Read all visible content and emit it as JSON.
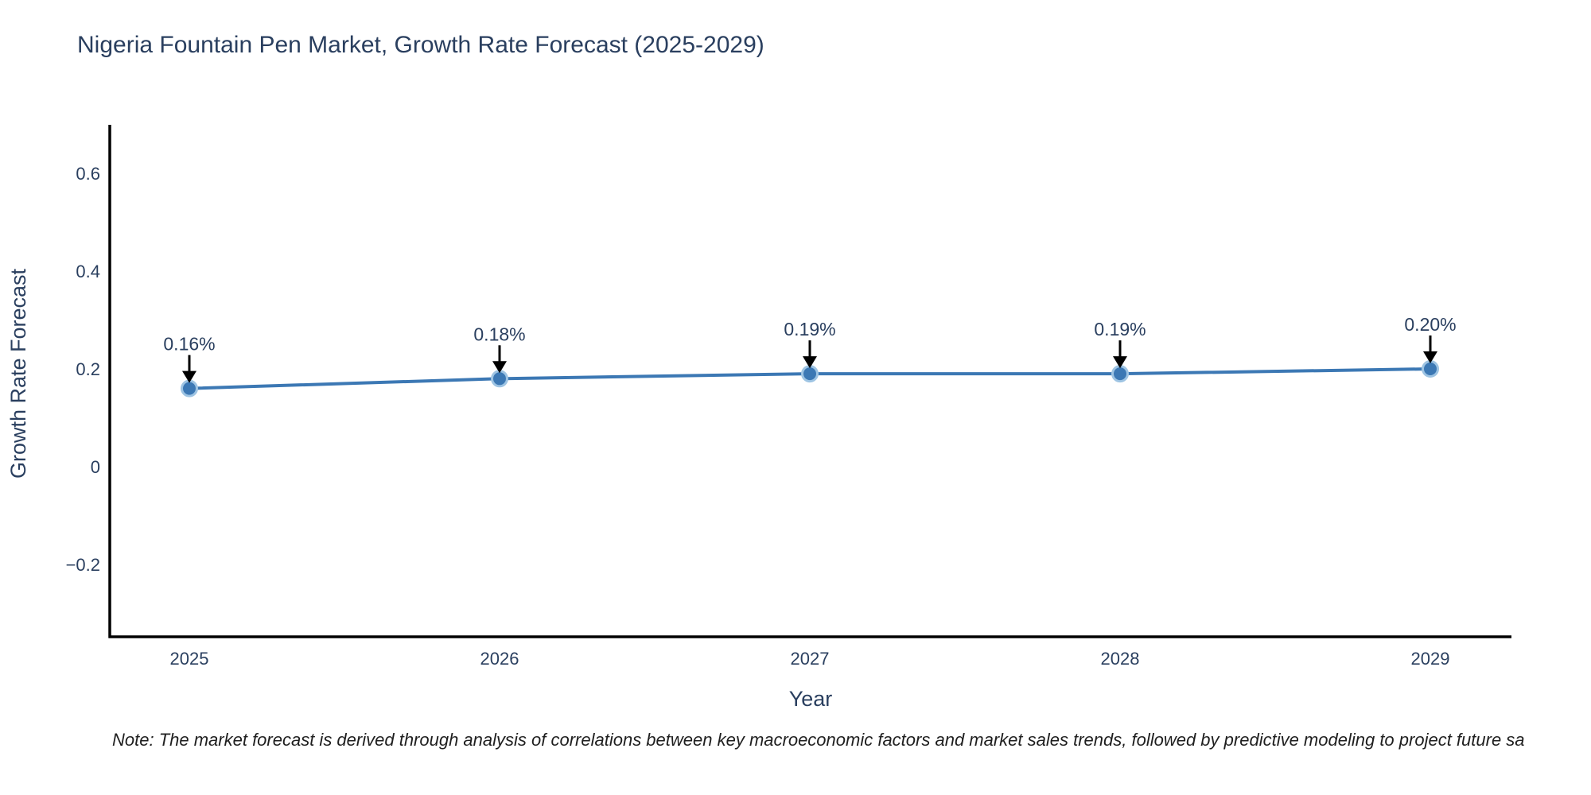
{
  "title": "Nigeria Fountain Pen Market, Growth Rate Forecast (2025-2029)",
  "note": "Note: The market forecast is derived through analysis of correlations between key macroeconomic factors and market sales trends, followed by predictive modeling to project future sa",
  "chart_data": {
    "type": "line",
    "title": "Nigeria Fountain Pen Market, Growth Rate Forecast (2025-2029)",
    "xlabel": "Year",
    "ylabel": "Growth Rate Forecast",
    "categories": [
      "2025",
      "2026",
      "2027",
      "2028",
      "2029"
    ],
    "series": [
      {
        "name": "Growth Rate Forecast",
        "values": [
          0.16,
          0.18,
          0.19,
          0.19,
          0.2
        ],
        "point_labels": [
          "0.16%",
          "0.18%",
          "0.19%",
          "0.19%",
          "0.20%"
        ]
      }
    ],
    "yticks": [
      0.6,
      0.4,
      0.2,
      0,
      -0.2
    ],
    "ytick_labels": [
      "0.6",
      "0.4",
      "0.2",
      "0",
      "−0.2"
    ],
    "ylim": [
      -0.35,
      0.69
    ],
    "grid": false,
    "legend_position": "none",
    "annotation_style": "value label with downward black arrow above each point",
    "colors": {
      "line": "#3c78b4",
      "marker": "#3c78b4",
      "marker_edge": "#9ec4e3",
      "axis": "#000000",
      "chart_text": "#2a3f5f",
      "arrow": "#000000",
      "background": "#ffffff"
    }
  }
}
